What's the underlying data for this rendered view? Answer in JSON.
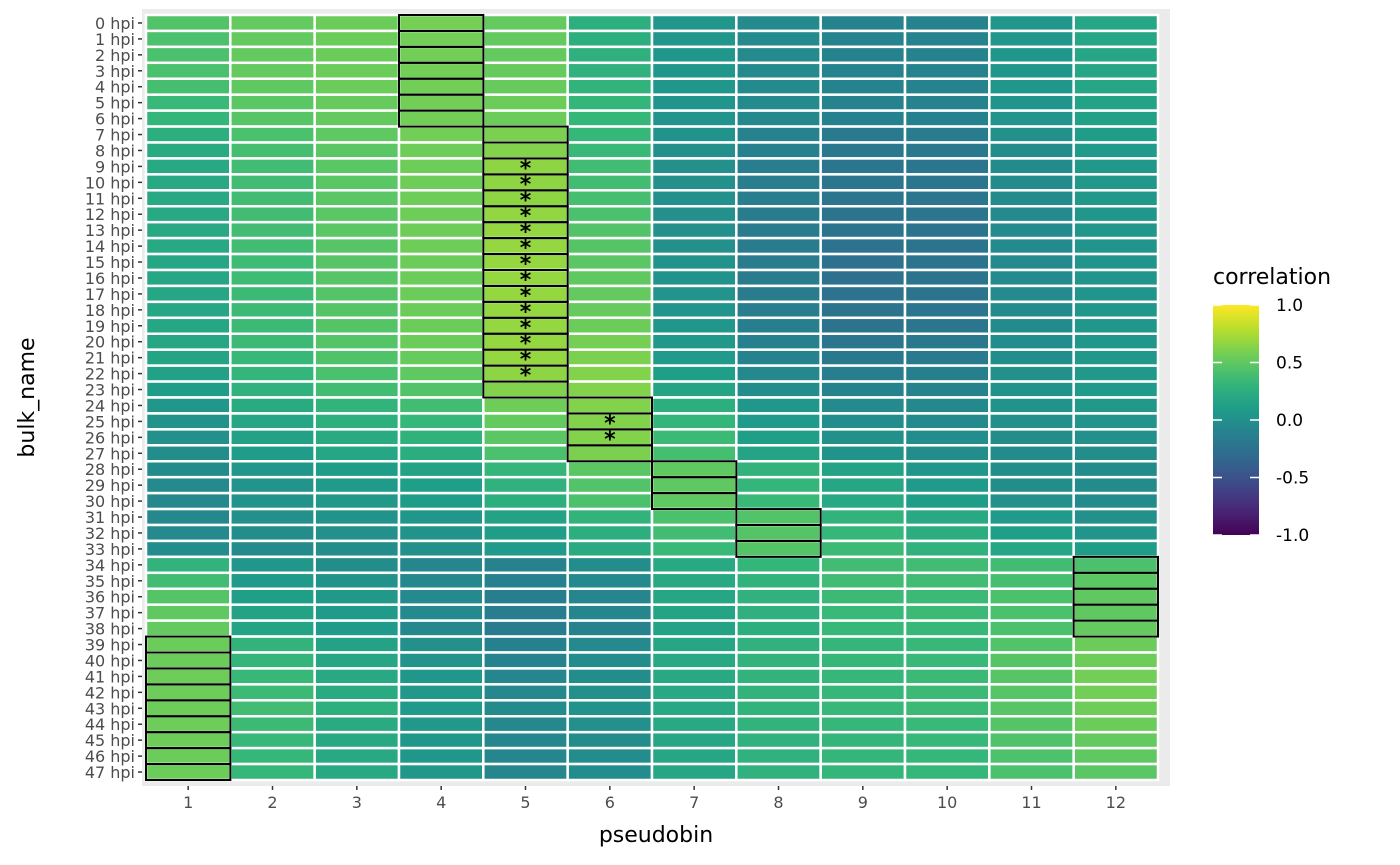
{
  "chart_data": {
    "type": "heatmap",
    "xlabel": "pseudobin",
    "ylabel": "bulk_name",
    "legend_title": "correlation",
    "x_categories": [
      "1",
      "2",
      "3",
      "4",
      "5",
      "6",
      "7",
      "8",
      "9",
      "10",
      "11",
      "12"
    ],
    "y_categories": [
      "0 hpi",
      "1 hpi",
      "2 hpi",
      "3 hpi",
      "4 hpi",
      "5 hpi",
      "6 hpi",
      "7 hpi",
      "8 hpi",
      "9 hpi",
      "10 hpi",
      "11 hpi",
      "12 hpi",
      "13 hpi",
      "14 hpi",
      "15 hpi",
      "16 hpi",
      "17 hpi",
      "18 hpi",
      "19 hpi",
      "20 hpi",
      "21 hpi",
      "22 hpi",
      "23 hpi",
      "24 hpi",
      "25 hpi",
      "26 hpi",
      "27 hpi",
      "28 hpi",
      "29 hpi",
      "30 hpi",
      "31 hpi",
      "32 hpi",
      "33 hpi",
      "34 hpi",
      "35 hpi",
      "36 hpi",
      "37 hpi",
      "38 hpi",
      "39 hpi",
      "40 hpi",
      "41 hpi",
      "42 hpi",
      "43 hpi",
      "44 hpi",
      "45 hpi",
      "46 hpi",
      "47 hpi"
    ],
    "values": [
      [
        0.45,
        0.52,
        0.55,
        0.58,
        0.52,
        0.25,
        0.05,
        -0.05,
        -0.1,
        -0.1,
        0.05,
        0.18
      ],
      [
        0.42,
        0.52,
        0.55,
        0.57,
        0.52,
        0.25,
        0.05,
        -0.05,
        -0.1,
        -0.1,
        0.05,
        0.18
      ],
      [
        0.42,
        0.52,
        0.55,
        0.57,
        0.52,
        0.27,
        0.05,
        -0.05,
        -0.1,
        -0.1,
        0.05,
        0.18
      ],
      [
        0.42,
        0.52,
        0.55,
        0.57,
        0.53,
        0.28,
        0.05,
        -0.05,
        -0.1,
        -0.1,
        0.05,
        0.18
      ],
      [
        0.4,
        0.5,
        0.55,
        0.57,
        0.53,
        0.3,
        0.05,
        -0.05,
        -0.1,
        -0.1,
        0.05,
        0.18
      ],
      [
        0.35,
        0.48,
        0.53,
        0.57,
        0.55,
        0.32,
        0.04,
        -0.05,
        -0.1,
        -0.1,
        0.04,
        0.15
      ],
      [
        0.32,
        0.47,
        0.52,
        0.57,
        0.55,
        0.33,
        0.03,
        -0.06,
        -0.12,
        -0.12,
        0.03,
        0.14
      ],
      [
        0.25,
        0.42,
        0.5,
        0.57,
        0.6,
        0.33,
        0.02,
        -0.1,
        -0.18,
        -0.17,
        0.0,
        0.1
      ],
      [
        0.22,
        0.4,
        0.48,
        0.56,
        0.62,
        0.35,
        0.0,
        -0.12,
        -0.2,
        -0.2,
        -0.02,
        0.08
      ],
      [
        0.2,
        0.38,
        0.48,
        0.56,
        0.66,
        0.38,
        0.0,
        -0.15,
        -0.22,
        -0.22,
        -0.04,
        0.06
      ],
      [
        0.2,
        0.38,
        0.48,
        0.56,
        0.66,
        0.38,
        0.0,
        -0.15,
        -0.22,
        -0.22,
        -0.04,
        0.06
      ],
      [
        0.2,
        0.38,
        0.48,
        0.56,
        0.66,
        0.4,
        0.0,
        -0.15,
        -0.22,
        -0.22,
        -0.04,
        0.06
      ],
      [
        0.2,
        0.38,
        0.48,
        0.56,
        0.67,
        0.42,
        0.0,
        -0.16,
        -0.23,
        -0.22,
        -0.05,
        0.05
      ],
      [
        0.2,
        0.38,
        0.48,
        0.56,
        0.68,
        0.45,
        0.0,
        -0.16,
        -0.24,
        -0.23,
        -0.05,
        0.05
      ],
      [
        0.2,
        0.38,
        0.47,
        0.56,
        0.68,
        0.46,
        0.0,
        -0.17,
        -0.25,
        -0.24,
        -0.05,
        0.04
      ],
      [
        0.18,
        0.37,
        0.47,
        0.55,
        0.68,
        0.48,
        0.02,
        -0.17,
        -0.26,
        -0.24,
        -0.05,
        0.04
      ],
      [
        0.18,
        0.37,
        0.47,
        0.55,
        0.68,
        0.5,
        0.02,
        -0.17,
        -0.26,
        -0.24,
        -0.05,
        0.04
      ],
      [
        0.18,
        0.36,
        0.46,
        0.55,
        0.68,
        0.52,
        0.03,
        -0.16,
        -0.25,
        -0.23,
        -0.05,
        0.04
      ],
      [
        0.18,
        0.36,
        0.46,
        0.55,
        0.68,
        0.53,
        0.04,
        -0.15,
        -0.24,
        -0.22,
        -0.04,
        0.05
      ],
      [
        0.18,
        0.36,
        0.46,
        0.55,
        0.68,
        0.55,
        0.05,
        -0.14,
        -0.23,
        -0.21,
        -0.04,
        0.05
      ],
      [
        0.18,
        0.36,
        0.46,
        0.55,
        0.68,
        0.58,
        0.06,
        -0.13,
        -0.22,
        -0.2,
        -0.03,
        0.05
      ],
      [
        0.16,
        0.34,
        0.44,
        0.53,
        0.68,
        0.6,
        0.08,
        -0.1,
        -0.2,
        -0.18,
        -0.02,
        0.06
      ],
      [
        0.14,
        0.32,
        0.42,
        0.5,
        0.66,
        0.62,
        0.12,
        -0.06,
        -0.15,
        -0.14,
        0.0,
        0.07
      ],
      [
        0.1,
        0.28,
        0.38,
        0.45,
        0.62,
        0.62,
        0.16,
        -0.02,
        -0.1,
        -0.1,
        0.02,
        0.08
      ],
      [
        0.05,
        0.22,
        0.3,
        0.38,
        0.56,
        0.62,
        0.25,
        0.05,
        -0.05,
        -0.06,
        0.02,
        0.06
      ],
      [
        0.02,
        0.18,
        0.26,
        0.33,
        0.52,
        0.62,
        0.32,
        0.08,
        -0.03,
        -0.05,
        0.0,
        0.03
      ],
      [
        0.0,
        0.14,
        0.22,
        0.29,
        0.48,
        0.62,
        0.36,
        0.12,
        0.0,
        -0.03,
        -0.02,
        0.0
      ],
      [
        -0.02,
        0.1,
        0.18,
        0.24,
        0.42,
        0.6,
        0.4,
        0.16,
        0.02,
        -0.02,
        -0.04,
        -0.02
      ],
      [
        -0.04,
        0.05,
        0.1,
        0.15,
        0.32,
        0.48,
        0.5,
        0.3,
        0.15,
        0.05,
        -0.02,
        -0.04
      ],
      [
        -0.05,
        0.03,
        0.08,
        0.12,
        0.28,
        0.45,
        0.5,
        0.32,
        0.18,
        0.08,
        -0.02,
        -0.04
      ],
      [
        -0.06,
        0.02,
        0.06,
        0.1,
        0.25,
        0.42,
        0.5,
        0.35,
        0.2,
        0.1,
        0.0,
        -0.04
      ],
      [
        -0.06,
        0.0,
        0.02,
        0.05,
        0.15,
        0.3,
        0.42,
        0.45,
        0.3,
        0.2,
        0.08,
        0.0
      ],
      [
        -0.05,
        -0.02,
        0.0,
        0.02,
        0.1,
        0.25,
        0.38,
        0.46,
        0.33,
        0.24,
        0.12,
        0.04
      ],
      [
        -0.03,
        -0.04,
        -0.02,
        0.0,
        0.08,
        0.22,
        0.35,
        0.46,
        0.36,
        0.28,
        0.18,
        0.1
      ],
      [
        0.3,
        0.05,
        -0.02,
        -0.08,
        -0.1,
        -0.02,
        0.2,
        0.32,
        0.38,
        0.38,
        0.38,
        0.42
      ],
      [
        0.38,
        0.08,
        0.02,
        -0.06,
        -0.12,
        -0.05,
        0.2,
        0.3,
        0.38,
        0.38,
        0.4,
        0.48
      ],
      [
        0.46,
        0.12,
        0.06,
        -0.05,
        -0.14,
        -0.07,
        0.18,
        0.28,
        0.36,
        0.36,
        0.42,
        0.5
      ],
      [
        0.5,
        0.15,
        0.08,
        -0.05,
        -0.15,
        -0.08,
        0.16,
        0.27,
        0.35,
        0.36,
        0.42,
        0.5
      ],
      [
        0.52,
        0.16,
        0.08,
        -0.06,
        -0.16,
        -0.1,
        0.15,
        0.25,
        0.34,
        0.34,
        0.42,
        0.52
      ],
      [
        0.55,
        0.3,
        0.15,
        0.0,
        -0.12,
        -0.05,
        0.18,
        0.28,
        0.32,
        0.34,
        0.45,
        0.55
      ],
      [
        0.55,
        0.32,
        0.18,
        0.03,
        -0.1,
        -0.03,
        0.2,
        0.3,
        0.33,
        0.35,
        0.46,
        0.56
      ],
      [
        0.56,
        0.34,
        0.2,
        0.05,
        -0.08,
        -0.02,
        0.2,
        0.3,
        0.33,
        0.36,
        0.47,
        0.57
      ],
      [
        0.56,
        0.36,
        0.22,
        0.06,
        -0.06,
        0.0,
        0.2,
        0.3,
        0.33,
        0.36,
        0.47,
        0.57
      ],
      [
        0.56,
        0.38,
        0.26,
        0.08,
        -0.04,
        0.02,
        0.2,
        0.3,
        0.34,
        0.36,
        0.47,
        0.56
      ],
      [
        0.56,
        0.36,
        0.22,
        0.06,
        -0.06,
        0.0,
        0.2,
        0.3,
        0.33,
        0.35,
        0.46,
        0.55
      ],
      [
        0.56,
        0.34,
        0.2,
        0.05,
        -0.08,
        -0.02,
        0.18,
        0.28,
        0.32,
        0.34,
        0.44,
        0.52
      ],
      [
        0.55,
        0.33,
        0.2,
        0.05,
        -0.08,
        -0.03,
        0.18,
        0.28,
        0.32,
        0.33,
        0.43,
        0.5
      ],
      [
        0.55,
        0.33,
        0.2,
        0.05,
        -0.08,
        -0.03,
        0.18,
        0.28,
        0.32,
        0.33,
        0.42,
        0.48
      ]
    ],
    "highlight_boxes": [
      {
        "x": "4",
        "rows": [
          "0 hpi",
          "1 hpi",
          "2 hpi",
          "3 hpi",
          "4 hpi",
          "5 hpi",
          "6 hpi"
        ]
      },
      {
        "x": "5",
        "rows": [
          "7 hpi",
          "8 hpi",
          "9 hpi",
          "10 hpi",
          "11 hpi",
          "12 hpi",
          "13 hpi",
          "14 hpi",
          "15 hpi",
          "16 hpi",
          "17 hpi",
          "18 hpi",
          "19 hpi",
          "20 hpi",
          "21 hpi",
          "22 hpi",
          "23 hpi"
        ]
      },
      {
        "x": "6",
        "rows": [
          "24 hpi",
          "25 hpi",
          "26 hpi",
          "27 hpi"
        ]
      },
      {
        "x": "7",
        "rows": [
          "28 hpi",
          "29 hpi",
          "30 hpi"
        ]
      },
      {
        "x": "8",
        "rows": [
          "31 hpi",
          "32 hpi",
          "33 hpi"
        ]
      },
      {
        "x": "12",
        "rows": [
          "34 hpi",
          "35 hpi",
          "36 hpi",
          "37 hpi",
          "38 hpi"
        ]
      },
      {
        "x": "1",
        "rows": [
          "39 hpi",
          "40 hpi",
          "41 hpi",
          "42 hpi",
          "43 hpi",
          "44 hpi",
          "45 hpi",
          "46 hpi",
          "47 hpi"
        ]
      }
    ],
    "significance_marks": [
      {
        "x": "5",
        "y": "9 hpi"
      },
      {
        "x": "5",
        "y": "10 hpi"
      },
      {
        "x": "5",
        "y": "11 hpi"
      },
      {
        "x": "5",
        "y": "12 hpi"
      },
      {
        "x": "5",
        "y": "13 hpi"
      },
      {
        "x": "5",
        "y": "14 hpi"
      },
      {
        "x": "5",
        "y": "15 hpi"
      },
      {
        "x": "5",
        "y": "16 hpi"
      },
      {
        "x": "5",
        "y": "17 hpi"
      },
      {
        "x": "5",
        "y": "18 hpi"
      },
      {
        "x": "5",
        "y": "19 hpi"
      },
      {
        "x": "5",
        "y": "20 hpi"
      },
      {
        "x": "5",
        "y": "21 hpi"
      },
      {
        "x": "5",
        "y": "22 hpi"
      },
      {
        "x": "6",
        "y": "25 hpi"
      },
      {
        "x": "6",
        "y": "26 hpi"
      }
    ],
    "significance_symbol": "*",
    "color_scale": {
      "name": "viridis",
      "limits": [
        -1.0,
        1.0
      ],
      "breaks": [
        1.0,
        0.5,
        0.0,
        -0.5,
        -1.0
      ],
      "break_labels": [
        "1.0",
        "0.5",
        "0.0",
        "-0.5",
        "-1.0"
      ]
    },
    "legend_position": "right",
    "grid": false
  }
}
